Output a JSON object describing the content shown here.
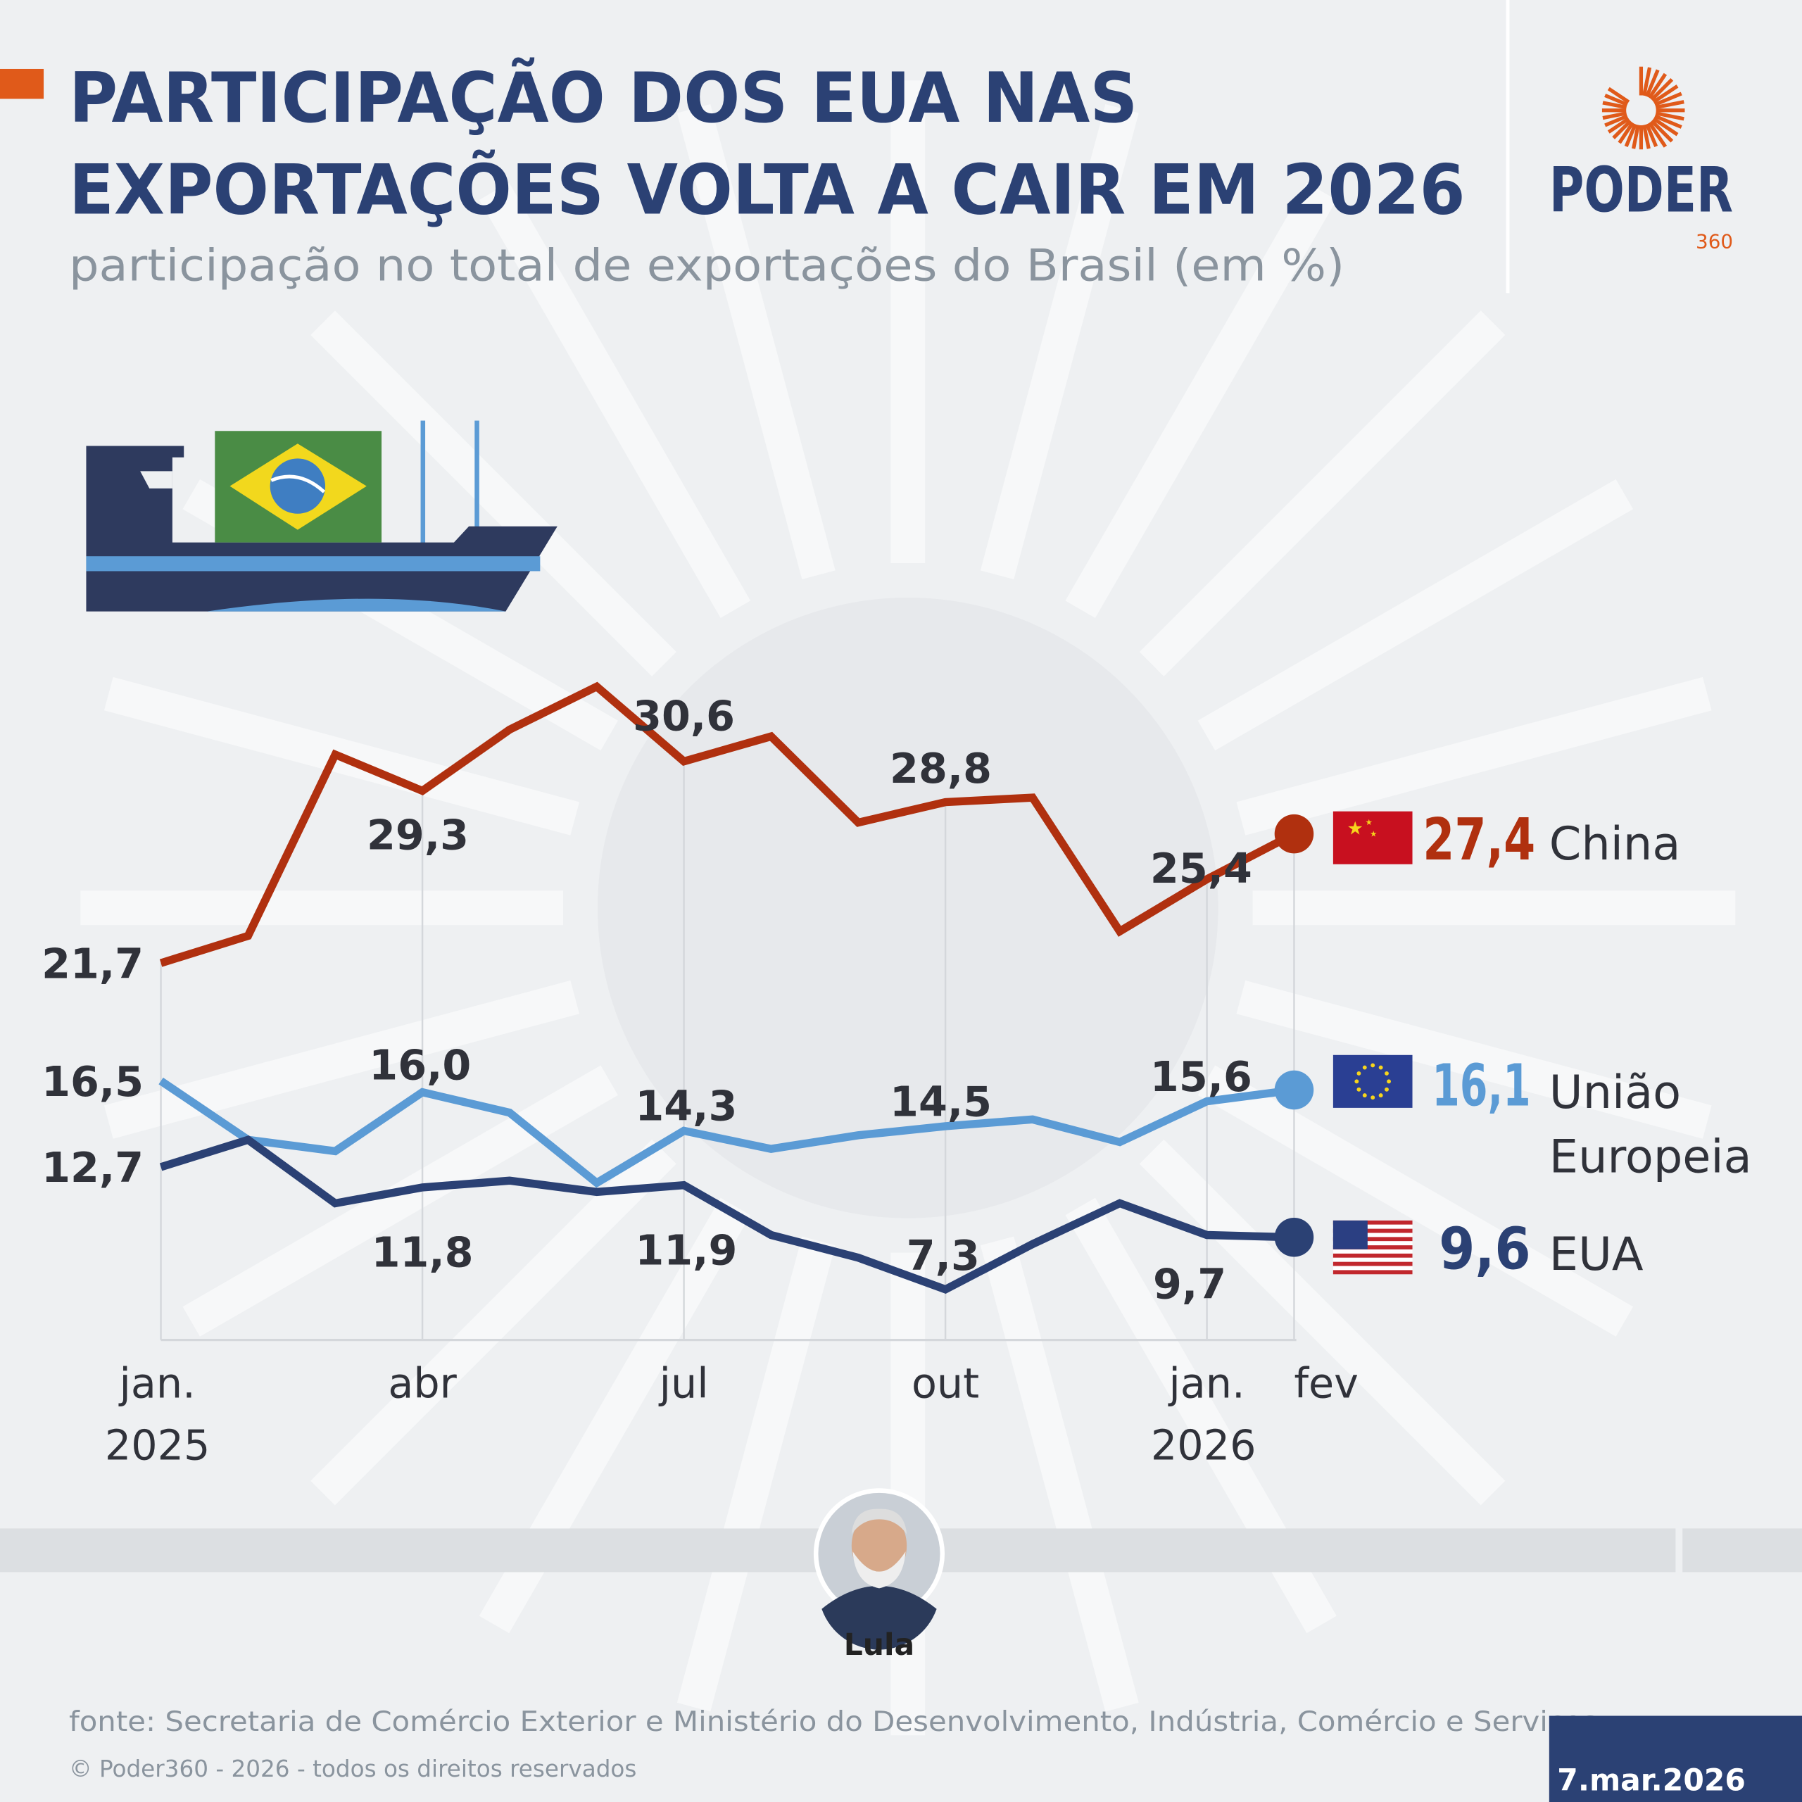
{
  "header": {
    "title_line1": "PARTICIPAÇÃO DOS EUA NAS",
    "title_line2": "EXPORTAÇÕES VOLTA A CAIR EM 2026",
    "subtitle": "participação no total de exportações do Brasil (em %)"
  },
  "logo": {
    "text": "PODER",
    "suffix": "360"
  },
  "chart_data": {
    "type": "line",
    "subtitle": "participação no total de exportações do Brasil (em %)",
    "x": [
      "jan/2025",
      "fev/2025",
      "mar/2025",
      "abr/2025",
      "mai/2025",
      "jun/2025",
      "jul/2025",
      "ago/2025",
      "set/2025",
      "out/2025",
      "nov/2025",
      "dez/2025",
      "jan/2026",
      "fev/2026"
    ],
    "tick_labels": [
      {
        "index": 0,
        "line1": "jan.",
        "line2": "2025"
      },
      {
        "index": 3,
        "line1": "abr",
        "line2": ""
      },
      {
        "index": 6,
        "line1": "jul",
        "line2": ""
      },
      {
        "index": 9,
        "line1": "out",
        "line2": ""
      },
      {
        "index": 12,
        "line1": "jan.",
        "line2": "2026"
      },
      {
        "index": 13,
        "line1": "fev",
        "line2": ""
      }
    ],
    "grid": "vertical lines at labeled months",
    "series": [
      {
        "name": "China",
        "color": "#b0300f",
        "flag": "china-flag",
        "values": [
          21.7,
          22.9,
          30.9,
          29.3,
          32.0,
          33.9,
          30.6,
          31.7,
          27.9,
          28.8,
          29.0,
          23.1,
          25.4,
          27.4
        ],
        "labels": [
          "21,7",
          null,
          null,
          "29,3",
          null,
          null,
          "30,6",
          null,
          null,
          "28,8",
          null,
          null,
          "25,4",
          null
        ],
        "end_label": "27,4",
        "end_name": "China"
      },
      {
        "name": "União Europeia",
        "color": "#5b9bd5",
        "flag": "eu-flag",
        "values": [
          16.5,
          13.9,
          13.4,
          16.0,
          15.1,
          12.0,
          14.3,
          13.5,
          14.1,
          14.5,
          14.8,
          13.8,
          15.6,
          16.1
        ],
        "labels": [
          "16,5",
          null,
          null,
          "16,0",
          null,
          null,
          "14,3",
          null,
          null,
          "14,5",
          null,
          null,
          "15,6",
          null
        ],
        "end_label": "16,1",
        "end_name_line1": "União",
        "end_name_line2": "Europeia"
      },
      {
        "name": "EUA",
        "color": "#2b4174",
        "flag": "us-flag",
        "values": [
          12.7,
          13.9,
          11.1,
          11.8,
          12.1,
          11.6,
          11.9,
          9.7,
          8.7,
          7.3,
          9.3,
          11.1,
          9.7,
          9.6
        ],
        "labels": [
          "12,7",
          null,
          null,
          "11,8",
          null,
          null,
          "11,9",
          null,
          null,
          "7,3",
          null,
          null,
          "9,7",
          null
        ],
        "end_label": "9,6",
        "end_name": "EUA"
      }
    ]
  },
  "person": {
    "name": "Lula"
  },
  "footer": {
    "source": "fonte: Secretaria de Comércio Exterior e Ministério do Desenvolvimento, Indústria, Comércio e Serviços",
    "copyright": "© Poder360 - 2026 - todos os direitos reservados",
    "date": "7.mar.2026"
  },
  "colors": {
    "accent": "#e05a1a",
    "title": "#2b4174",
    "background": "#eef0f2"
  }
}
